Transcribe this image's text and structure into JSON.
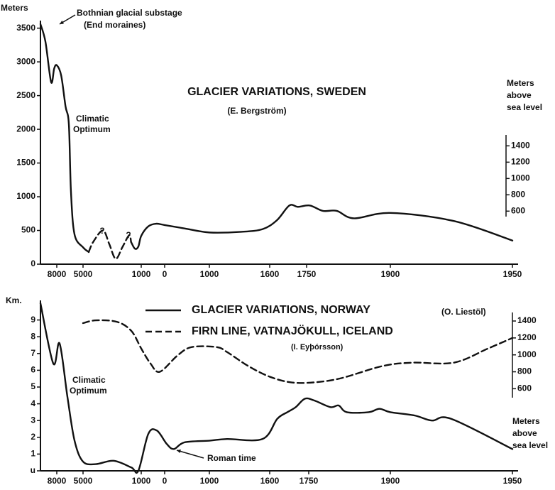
{
  "chart_data": [
    {
      "type": "line",
      "title": "GLACIER VARIATIONS, SWEDEN",
      "subtitle": "(E. Bergström)",
      "y_label": "Meters",
      "y2_label": [
        "Meters",
        "above",
        "sea level"
      ],
      "annotations": [
        "Bothnian glacial substage",
        "(End moraines)",
        "Climatic",
        "Optimum",
        "?",
        "?"
      ],
      "xlim": [
        -9870,
        1950
      ],
      "xticks": [
        {
          "value": -8000,
          "label": "8000"
        },
        {
          "value": -5000,
          "label": "5000"
        },
        {
          "value": -1000,
          "label": "1000"
        },
        0,
        1000,
        1600,
        1750,
        1900,
        1950
      ],
      "ylim": [
        0,
        3570
      ],
      "yticks": [
        0,
        500,
        1000,
        1500,
        2000,
        2500,
        3000,
        3500
      ],
      "y2lim": [
        -50,
        2900
      ],
      "y2ticks": [
        600,
        800,
        1000,
        1200,
        1400
      ],
      "series": [
        {
          "color": "#111111",
          "dashed": false,
          "x": [
            -9870,
            -9300,
            -8650,
            -8300,
            -8000,
            -7500,
            -7000,
            -6620,
            -6380,
            -5970,
            -5000,
            -4610,
            -4000,
            -1700,
            -1440,
            -1200,
            -1000,
            -700,
            -364,
            0,
            444,
            1000,
            1318,
            1530,
            1629,
            1680,
            1715,
            1756,
            1779,
            1804,
            1835,
            1900,
            1926,
            1950
          ],
          "values": [
            3560,
            3300,
            2700,
            2900,
            2950,
            2800,
            2340,
            2075,
            1075,
            440,
            250,
            180,
            null,
            330,
            230,
            260,
            420,
            560,
            600,
            580,
            530,
            470,
            480,
            520,
            650,
            870,
            850,
            870,
            790,
            790,
            680,
            760,
            640,
            350
          ]
        },
        {
          "color": "#111111",
          "dashed": true,
          "x": [
            -4610,
            -4300,
            -3630,
            -3200,
            -2755,
            -2300,
            -1830,
            -1700
          ],
          "values": [
            180,
            330,
            500,
            300,
            80,
            250,
            430,
            330
          ]
        }
      ]
    },
    {
      "type": "line",
      "y_label": "Km.",
      "y2_label": [
        "Meters",
        "above",
        "sea level"
      ],
      "annotations": [
        "(O. Liestöl)",
        "(I. Eyþórsson)",
        "Climatic",
        "Optimum",
        "Roman time"
      ],
      "xlim": [
        -9870,
        1950
      ],
      "xticks": [
        {
          "value": -8000,
          "label": "8000"
        },
        {
          "value": -5000,
          "label": "5000"
        },
        {
          "value": -1000,
          "label": "1000"
        },
        0,
        1000,
        1600,
        1750,
        1900,
        1950
      ],
      "ylim": [
        0,
        10
      ],
      "yticks": [
        {
          "value": 0,
          "label": "u"
        },
        1,
        2,
        3,
        4,
        5,
        6,
        7,
        8,
        9
      ],
      "y2lim": [
        -370,
        1610
      ],
      "y2ticks": [
        600,
        800,
        1000,
        1200,
        1400
      ],
      "series": [
        {
          "name": "GLACIER VARIATIONS, NORWAY",
          "color": "#111111",
          "dashed": false,
          "x": [
            -9870,
            -8400,
            -7680,
            -6780,
            -5970,
            -5000,
            -4120,
            -2900,
            -1680,
            -1200,
            -700,
            -330,
            48,
            206,
            444,
            1000,
            1176,
            1529,
            1629,
            1668,
            1700,
            1735,
            1760,
            1790,
            1805,
            1820,
            1860,
            1880,
            1900,
            1910,
            1917,
            1925,
            1950
          ],
          "values": [
            10,
            6.4,
            7.6,
            4.4,
            1.8,
            0.55,
            0.4,
            0.6,
            0.2,
            0,
            2.2,
            2.4,
            1.6,
            1.3,
            1.7,
            1.8,
            1.9,
            1.9,
            3.1,
            3.5,
            3.8,
            4.3,
            4.2,
            3.8,
            3.9,
            3.5,
            3.5,
            3.7,
            3.5,
            3.3,
            3.0,
            3.1,
            1.3
          ]
        },
        {
          "name": "FIRN LINE, VATNAJÖKULL, ICELAND",
          "color": "#111111",
          "dashed": true,
          "axis": "y2",
          "x": [
            -5000,
            -4120,
            -2660,
            -1680,
            -1000,
            -610,
            -210,
            286,
            603,
            1071,
            1176,
            1388,
            1600,
            1682,
            1760,
            1810,
            1885,
            1909,
            1926,
            1940,
            1950
          ],
          "values": [
            1375,
            1408,
            1390,
            1283,
            1075,
            900,
            800,
            992,
            1092,
            1092,
            1033,
            867,
            742,
            675,
            675,
            725,
            867,
            908,
            908,
            1075,
            1200
          ]
        }
      ]
    }
  ]
}
